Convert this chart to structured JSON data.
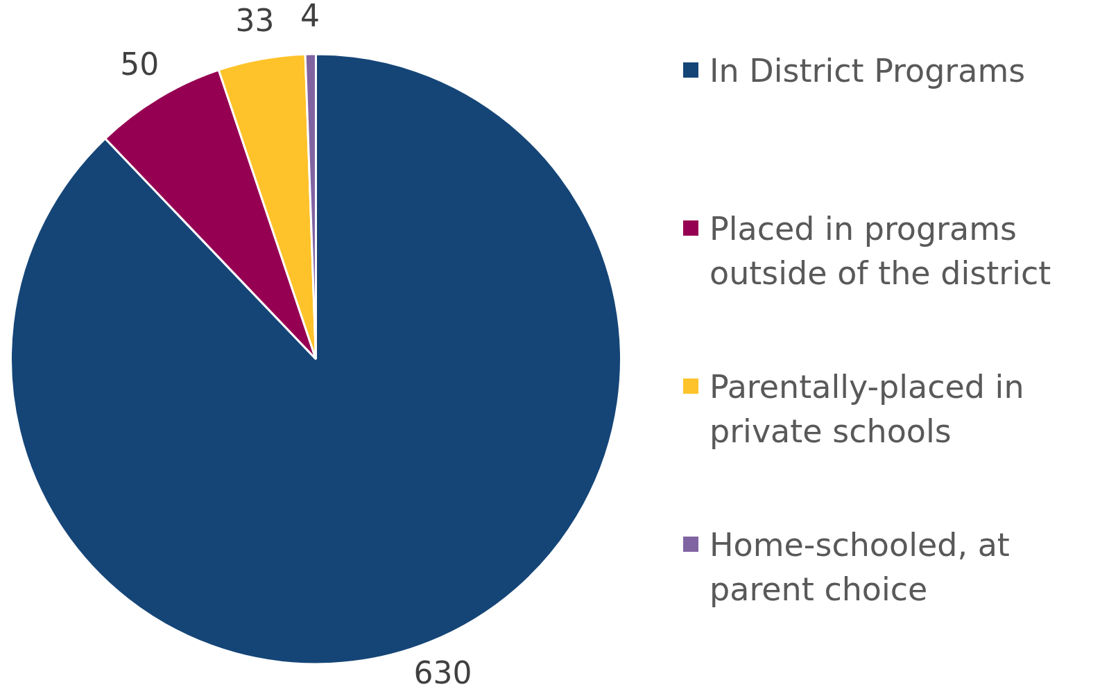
{
  "chart_data": {
    "type": "pie",
    "categories": [
      "In District Programs",
      "Placed in programs outside of the district",
      "Parentally-placed in private schools",
      "Home-schooled, at parent choice"
    ],
    "values": [
      630,
      50,
      33,
      4
    ],
    "colors": [
      "#154577",
      "#960052",
      "#fec32a",
      "#8064a2"
    ],
    "data_labels": true,
    "legend": "right"
  }
}
